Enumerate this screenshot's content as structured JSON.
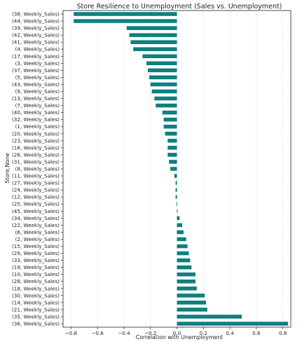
{
  "chart_data": {
    "type": "bar",
    "orientation": "horizontal",
    "title": "Store Resilience to Unemployment (Sales vs. Unemployment)",
    "xlabel": "Correlation with Unemployment",
    "ylabel": "Store,None",
    "xlim": [
      -0.86,
      0.86
    ],
    "xticks": [
      "−0.8",
      "−0.6",
      "−0.4",
      "−0.2",
      "0.0",
      "0.2",
      "0.4",
      "0.6",
      "0.8"
    ],
    "xtick_values": [
      -0.8,
      -0.6,
      -0.4,
      -0.2,
      0.0,
      0.2,
      0.4,
      0.6,
      0.8
    ],
    "grid": "vertical",
    "bar_color": "#0e8080",
    "categories": [
      "(38, Weekly_Sales)",
      "(44, Weekly_Sales)",
      "(39, Weekly_Sales)",
      "(42, Weekly_Sales)",
      "(41, Weekly_Sales)",
      "(4, Weekly_Sales)",
      "(17, Weekly_Sales)",
      "(3, Weekly_Sales)",
      "(37, Weekly_Sales)",
      "(5, Weekly_Sales)",
      "(43, Weekly_Sales)",
      "(9, Weekly_Sales)",
      "(13, Weekly_Sales)",
      "(7, Weekly_Sales)",
      "(40, Weekly_Sales)",
      "(32, Weekly_Sales)",
      "(1, Weekly_Sales)",
      "(20, Weekly_Sales)",
      "(23, Weekly_Sales)",
      "(16, Weekly_Sales)",
      "(26, Weekly_Sales)",
      "(31, Weekly_Sales)",
      "(8, Weekly_Sales)",
      "(11, Weekly_Sales)",
      "(27, Weekly_Sales)",
      "(24, Weekly_Sales)",
      "(12, Weekly_Sales)",
      "(25, Weekly_Sales)",
      "(45, Weekly_Sales)",
      "(34, Weekly_Sales)",
      "(22, Weekly_Sales)",
      "(6, Weekly_Sales)",
      "(2, Weekly_Sales)",
      "(15, Weekly_Sales)",
      "(29, Weekly_Sales)",
      "(33, Weekly_Sales)",
      "(19, Weekly_Sales)",
      "(10, Weekly_Sales)",
      "(28, Weekly_Sales)",
      "(18, Weekly_Sales)",
      "(30, Weekly_Sales)",
      "(14, Weekly_Sales)",
      "(21, Weekly_Sales)",
      "(35, Weekly_Sales)",
      "(36, Weekly_Sales)"
    ],
    "values": [
      -0.78,
      -0.78,
      -0.38,
      -0.36,
      -0.35,
      -0.33,
      -0.26,
      -0.23,
      -0.22,
      -0.21,
      -0.2,
      -0.19,
      -0.17,
      -0.16,
      -0.11,
      -0.1,
      -0.1,
      -0.09,
      -0.07,
      -0.07,
      -0.07,
      -0.06,
      -0.05,
      -0.02,
      -0.01,
      -0.01,
      -0.01,
      -0.005,
      0.005,
      0.02,
      0.04,
      0.05,
      0.07,
      0.08,
      0.09,
      0.1,
      0.11,
      0.14,
      0.14,
      0.15,
      0.21,
      0.22,
      0.23,
      0.49,
      0.84
    ]
  }
}
